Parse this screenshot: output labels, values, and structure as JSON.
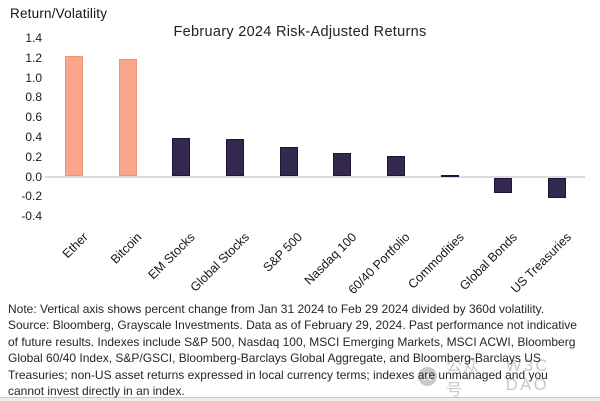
{
  "chart_data": {
    "type": "bar",
    "title": "February 2024 Risk-Adjusted Returns",
    "ylabel": "Return/Volatility",
    "xlabel": "",
    "categories": [
      "Ether",
      "Bitcoin",
      "EM Stocks",
      "Global Stocks",
      "S&P 500",
      "Nasdaq 100",
      "60/40 Portfolio",
      "Commodities",
      "Global Bonds",
      "US Treasuries"
    ],
    "values": [
      1.22,
      1.19,
      0.39,
      0.38,
      0.3,
      0.24,
      0.21,
      0.02,
      -0.15,
      -0.2
    ],
    "yticks": [
      "1.4",
      "1.2",
      "1.0",
      "0.8",
      "0.6",
      "0.4",
      "0.2",
      "0.0",
      "-0.2",
      "-0.4"
    ],
    "ylim": [
      -0.4,
      1.4
    ],
    "grid": false,
    "legend_position": "none",
    "bar_fill_colors": [
      "#F9A68D",
      "#F9A68D",
      "#33294F",
      "#33294F",
      "#33294F",
      "#33294F",
      "#33294F",
      "#33294F",
      "#33294F",
      "#33294F"
    ],
    "bar_border_colors": [
      "#F0926F",
      "#F0926F",
      "#1E1638",
      "#1E1638",
      "#1E1638",
      "#1E1638",
      "#1E1638",
      "#1E1638",
      "#1E1638",
      "#1E1638"
    ]
  },
  "note": {
    "lines": [
      "Note: Vertical axis shows percent change from Jan 31 2024 to Feb 29 2024 divided by 360d volatility.",
      "Source: Bloomberg, Grayscale Investments. Data as of February 29, 2024. Past performance not indicative",
      "of future results. Indexes include S&P 500, Nasdaq 100, MSCI Emerging Markets, MSCI ACWI, Bloomberg",
      "Global 60/40 Index, S&P/GSCI, Bloomberg-Barclays Global Aggregate, and Bloomberg-Barclays US",
      "Treasuries; non-US asset returns expressed in local currency terms; indexes are unmanaged and you",
      "cannot invest directly in an index."
    ]
  },
  "watermark": {
    "label": "公众号",
    "brand": "W3C DAO"
  },
  "colors": {
    "highlight_bar": "#F9A68D",
    "default_bar": "#33294F",
    "axis_line": "#DCDCDC",
    "watermark_gray": "#C9C9C9"
  }
}
